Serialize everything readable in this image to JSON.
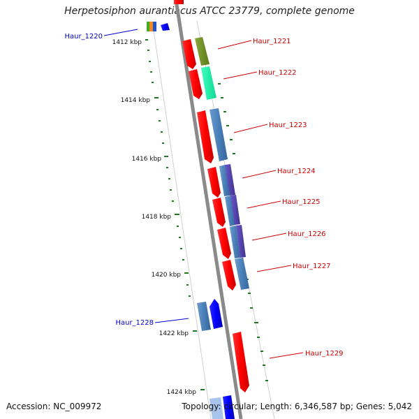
{
  "title": "Herpetosiphon aurantiacus ATCC 23779, complete genome",
  "footer": {
    "accession": "Accession: NC_009972",
    "summary": "Topology: circular; Length: 6,346,587 bp; Genes: 5,042"
  },
  "scale_labels": [
    "1412 kbp",
    "1414 kbp",
    "1416 kbp",
    "1418 kbp",
    "1420 kbp",
    "1422 kbp",
    "1424 kbp"
  ],
  "genes": [
    {
      "name": "Haur_1220",
      "strand": "minus",
      "color": "#0000cc"
    },
    {
      "name": "Haur_1221",
      "strand": "plus",
      "color": "#cc0000"
    },
    {
      "name": "Haur_1222",
      "strand": "plus",
      "color": "#cc0000"
    },
    {
      "name": "Haur_1223",
      "strand": "plus",
      "color": "#cc0000"
    },
    {
      "name": "Haur_1224",
      "strand": "plus",
      "color": "#cc0000"
    },
    {
      "name": "Haur_1225",
      "strand": "plus",
      "color": "#cc0000"
    },
    {
      "name": "Haur_1226",
      "strand": "plus",
      "color": "#cc0000"
    },
    {
      "name": "Haur_1227",
      "strand": "plus",
      "color": "#cc0000"
    },
    {
      "name": "Haur_1228",
      "strand": "minus",
      "color": "#0000cc"
    },
    {
      "name": "Haur_1229",
      "strand": "plus",
      "color": "#cc0000"
    }
  ],
  "colors": {
    "backbone": "#8a8a8a",
    "tick": "#1f7a1f",
    "forward_gene": "#ff0000",
    "reverse_gene": "#0000ff"
  }
}
